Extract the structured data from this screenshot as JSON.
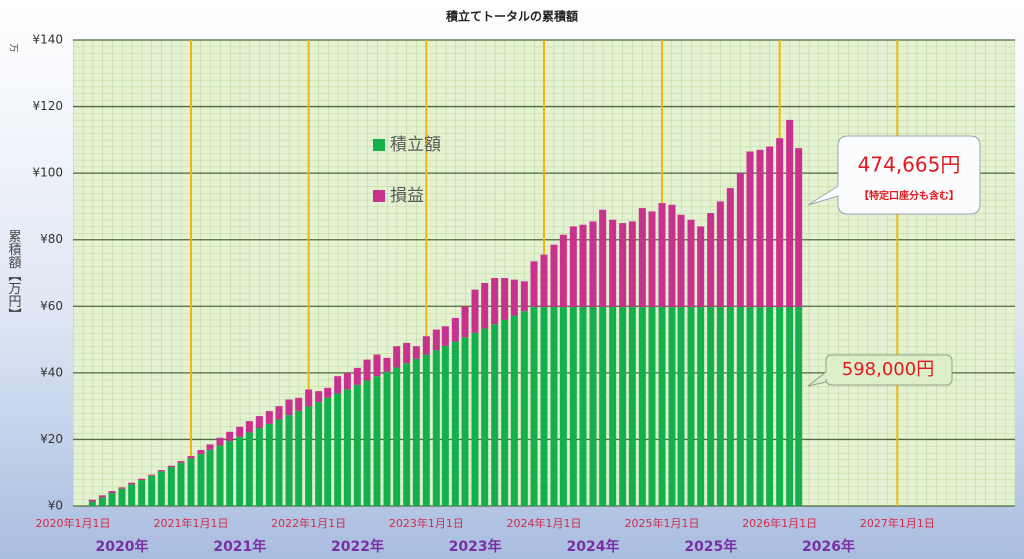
{
  "chart_data": {
    "type": "stacked_bar",
    "title": "積立てトータルの累積額",
    "y_label": "累積額【万円】",
    "y_unit": "万",
    "x": [
      "2020-03-01",
      "2020-04-01",
      "2020-05-01",
      "2020-06-01",
      "2020-07-01",
      "2020-08-01",
      "2020-09-01",
      "2020-10-01",
      "2020-11-01",
      "2020-12-01",
      "2021-01-01",
      "2021-02-01",
      "2021-03-01",
      "2021-04-01",
      "2021-05-01",
      "2021-06-01",
      "2021-07-01",
      "2021-08-01",
      "2021-09-01",
      "2021-10-01",
      "2021-11-01",
      "2021-12-01",
      "2022-01-01",
      "2022-02-01",
      "2022-03-01",
      "2022-04-01",
      "2022-05-01",
      "2022-06-01",
      "2022-07-01",
      "2022-08-01",
      "2022-09-01",
      "2022-10-01",
      "2022-11-01",
      "2022-12-01",
      "2023-01-01",
      "2023-02-01",
      "2023-03-01",
      "2023-04-01",
      "2023-05-01",
      "2023-06-01",
      "2023-07-01",
      "2023-08-01",
      "2023-09-01",
      "2023-10-01",
      "2023-11-01",
      "2023-12-01",
      "2024-01-01",
      "2024-02-01",
      "2024-03-01",
      "2024-04-01",
      "2024-05-01",
      "2024-06-01",
      "2024-07-01",
      "2024-08-01",
      "2024-09-01",
      "2024-10-01",
      "2024-11-01",
      "2024-12-01",
      "2025-01-01",
      "2025-02-01",
      "2025-03-01",
      "2025-04-01",
      "2025-05-01",
      "2025-06-01",
      "2025-07-01",
      "2025-08-01",
      "2025-09-01",
      "2025-10-01",
      "2025-11-01",
      "2025-12-01",
      "2026-01-01",
      "2026-02-01",
      "2026-03-01"
    ],
    "series": [
      {
        "name": "積立額",
        "color": "#13b04b",
        "values": [
          1.3,
          2.6,
          3.9,
          5.2,
          6.5,
          7.8,
          9.1,
          10.4,
          11.7,
          13,
          14.3,
          15.6,
          16.9,
          18.2,
          19.5,
          20.8,
          22.1,
          23.4,
          24.7,
          26,
          27.3,
          28.6,
          29.9,
          31.2,
          32.5,
          33.8,
          35.1,
          36.4,
          37.7,
          39,
          40.3,
          41.6,
          42.9,
          44.2,
          45.5,
          46.8,
          48.1,
          49.4,
          50.7,
          52,
          53.3,
          54.6,
          55.9,
          57.2,
          58.5,
          59.8,
          59.8,
          59.8,
          59.8,
          59.8,
          59.8,
          59.8,
          59.8,
          59.8,
          59.8,
          59.8,
          59.8,
          59.8,
          59.8,
          59.8,
          59.8,
          59.8,
          59.8,
          59.8,
          59.8,
          59.8,
          59.8,
          59.8,
          59.8,
          59.8,
          59.8,
          59.8,
          59.8
        ]
      },
      {
        "name": "損益",
        "color": "#c9318e",
        "values": [
          0.6,
          0.6,
          0.6,
          0.4,
          0.5,
          0.4,
          0.3,
          0.4,
          0.4,
          0.5,
          0.7,
          1.2,
          1.6,
          2.3,
          2.8,
          3.0,
          3.4,
          3.6,
          3.8,
          4.0,
          4.7,
          3.9,
          5.1,
          3.3,
          3.0,
          5.2,
          4.9,
          5.1,
          6.3,
          6.5,
          4.2,
          6.4,
          6.1,
          3.8,
          5.5,
          6.2,
          5.9,
          7.1,
          9.3,
          13.0,
          13.7,
          13.9,
          12.6,
          10.8,
          9.0,
          13.7,
          15.7,
          18.7,
          21.7,
          24.2,
          24.7,
          25.7,
          29.2,
          26.2,
          25.2,
          25.7,
          29.7,
          28.7,
          31.2,
          30.7,
          27.7,
          26.2,
          24.2,
          28.2,
          31.7,
          35.7,
          40.2,
          46.7,
          47.2,
          48.2,
          50.7,
          56.2,
          47.7
        ]
      }
    ],
    "xlim": [
      "2020-01-01",
      "2028-01-01"
    ],
    "xticks": [
      {
        "value": "2020-01-01",
        "label": "2020年1月1日"
      },
      {
        "value": "2021-01-01",
        "label": "2021年1月1日"
      },
      {
        "value": "2022-01-01",
        "label": "2022年1月1日"
      },
      {
        "value": "2023-01-01",
        "label": "2023年1月1日"
      },
      {
        "value": "2024-01-01",
        "label": "2024年1月1日"
      },
      {
        "value": "2025-01-01",
        "label": "2025年1月1日"
      },
      {
        "value": "2026-01-01",
        "label": "2026年1月1日"
      },
      {
        "value": "2027-01-01",
        "label": "2027年1月1日"
      }
    ],
    "year_labels": [
      "2020年",
      "2021年",
      "2022年",
      "2023年",
      "2024年",
      "2025年",
      "2026年"
    ],
    "ylim": [
      0,
      140
    ],
    "yticks": [
      {
        "value": 0,
        "label": "¥0"
      },
      {
        "value": 20,
        "label": "¥20"
      },
      {
        "value": 40,
        "label": "¥40"
      },
      {
        "value": 60,
        "label": "¥60"
      },
      {
        "value": 80,
        "label": "¥80"
      },
      {
        "value": 100,
        "label": "¥100"
      },
      {
        "value": 120,
        "label": "¥120"
      },
      {
        "value": 140,
        "label": "¥140"
      }
    ],
    "grid": true,
    "annotations": [
      {
        "text": "474,665円",
        "note": "【特定口座分も含む】"
      },
      {
        "text": "598,000円"
      }
    ]
  }
}
